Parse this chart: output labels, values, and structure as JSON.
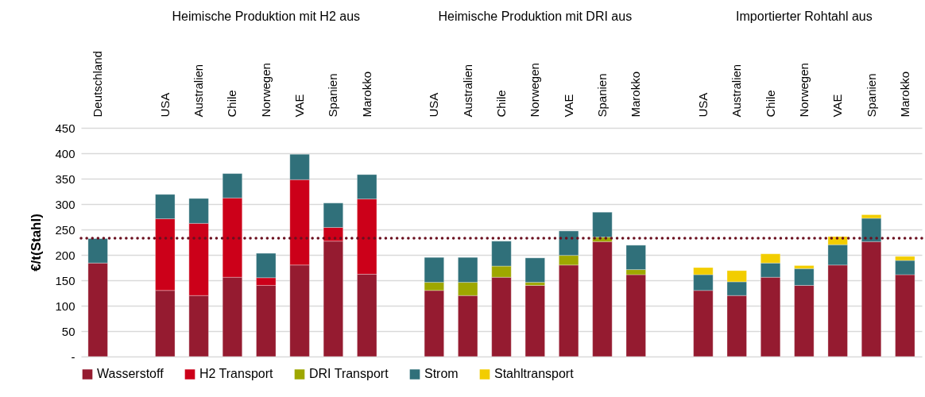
{
  "chart_data": {
    "type": "bar",
    "stacked": true,
    "ylabel": "€/t(Stahl)",
    "categories": [
      "Deutschland",
      null,
      "USA",
      "Australien",
      "Chile",
      "Norwegen",
      "VAE",
      "Spanien",
      "Marokko",
      null,
      "USA",
      "Australien",
      "Chile",
      "Norwegen",
      "VAE",
      "Spanien",
      "Marokko",
      null,
      "USA",
      "Australien",
      "Chile",
      "Norwegen",
      "VAE",
      "Spanien",
      "Marokko"
    ],
    "series": [
      {
        "name": "Wasserstoff",
        "color": "#951b30",
        "values": [
          184,
          null,
          130,
          120,
          156,
          140,
          180,
          227,
          162,
          null,
          130,
          120,
          156,
          140,
          180,
          226,
          161,
          null,
          130,
          120,
          156,
          140,
          180,
          226,
          161
        ]
      },
      {
        "name": "H2 Transport",
        "color": "#cc0019",
        "values": [
          null,
          null,
          141,
          142,
          156,
          15,
          168,
          27,
          148,
          null,
          null,
          null,
          null,
          null,
          null,
          null,
          null,
          null,
          null,
          null,
          null,
          null,
          null,
          null,
          null
        ]
      },
      {
        "name": "DRI Transport",
        "color": "#9ea700",
        "values": [
          null,
          null,
          null,
          null,
          null,
          null,
          null,
          null,
          null,
          null,
          16,
          26,
          22,
          6,
          19,
          9,
          10,
          null,
          null,
          null,
          null,
          null,
          null,
          null,
          null
        ]
      },
      {
        "name": "Strom",
        "color": "#30707a",
        "values": [
          48,
          null,
          48,
          49,
          48,
          48,
          50,
          48,
          48,
          null,
          49,
          49,
          49,
          48,
          48,
          49,
          48,
          null,
          31,
          27,
          28,
          33,
          40,
          46,
          28
        ]
      },
      {
        "name": "Stahltransport",
        "color": "#f2cd00",
        "values": [
          null,
          null,
          null,
          null,
          null,
          null,
          null,
          null,
          null,
          null,
          null,
          null,
          null,
          null,
          null,
          null,
          null,
          null,
          14,
          22,
          18,
          6,
          16,
          7,
          8
        ]
      }
    ],
    "ylim": [
      0,
      450
    ],
    "yticks": [
      {
        "value": 0,
        "label": "-"
      },
      50,
      100,
      150,
      200,
      250,
      300,
      350,
      400,
      450
    ],
    "grid": "y",
    "legend": "bottom",
    "ref_lines": [
      {
        "axis": "y",
        "value": 233,
        "color": "#6b1020",
        "line_style": "dotted"
      }
    ],
    "annotations": [
      "Heimische Produktion mit H2 aus",
      "Heimische Produktion mit DRI aus",
      "Importierter Rohtahl aus"
    ]
  }
}
